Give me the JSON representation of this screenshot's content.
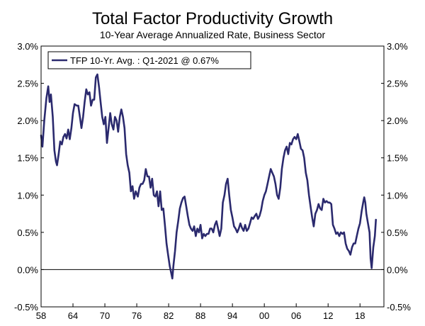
{
  "chart_data": {
    "type": "line",
    "title": "Total Factor Productivity Growth",
    "subtitle": "10-Year Average Annualized Rate, Business Sector",
    "xlabel": "",
    "ylabel": "",
    "xlim": [
      1958,
      2022.5
    ],
    "ylim": [
      -0.5,
      3.0
    ],
    "x_ticks": [
      1958,
      1964,
      1970,
      1976,
      1982,
      1988,
      1994,
      2000,
      2006,
      2012,
      2018
    ],
    "x_tick_labels": [
      "58",
      "64",
      "70",
      "76",
      "82",
      "88",
      "94",
      "00",
      "06",
      "12",
      "18"
    ],
    "y_ticks": [
      -0.5,
      0.0,
      0.5,
      1.0,
      1.5,
      2.0,
      2.5,
      3.0
    ],
    "y_tick_labels_left": [
      "-0.5%",
      "0.0%",
      "0.5%",
      "1.0%",
      "1.5%",
      "2.0%",
      "2.5%",
      "3.0%"
    ],
    "y_tick_labels_right": [
      "-0.5%",
      "0.0%",
      "0.5%",
      "1.0%",
      "1.5%",
      "2.0%",
      "2.5%",
      "3.0%"
    ],
    "zero_line": true,
    "legend": {
      "position": "top-left",
      "label": "TFP 10-Yr. Avg. : Q1-2021 @ 0.67%"
    },
    "series": [
      {
        "name": "TFP 10-Yr. Avg. : Q1-2021 @ 0.67%",
        "color": "#2b2a6e",
        "points": [
          [
            1958.0,
            1.8
          ],
          [
            1958.25,
            1.65
          ],
          [
            1958.6,
            2.0
          ],
          [
            1959.0,
            2.3
          ],
          [
            1959.35,
            2.46
          ],
          [
            1959.6,
            2.25
          ],
          [
            1959.85,
            2.35
          ],
          [
            1960.2,
            2.05
          ],
          [
            1960.5,
            1.6
          ],
          [
            1960.8,
            1.45
          ],
          [
            1961.0,
            1.4
          ],
          [
            1961.3,
            1.55
          ],
          [
            1961.6,
            1.72
          ],
          [
            1961.9,
            1.68
          ],
          [
            1962.2,
            1.78
          ],
          [
            1962.5,
            1.82
          ],
          [
            1962.8,
            1.76
          ],
          [
            1963.1,
            1.88
          ],
          [
            1963.4,
            1.75
          ],
          [
            1963.7,
            1.9
          ],
          [
            1964.0,
            2.1
          ],
          [
            1964.3,
            2.22
          ],
          [
            1964.7,
            2.2
          ],
          [
            1965.0,
            2.2
          ],
          [
            1965.3,
            2.05
          ],
          [
            1965.6,
            1.9
          ],
          [
            1965.9,
            2.05
          ],
          [
            1966.2,
            2.25
          ],
          [
            1966.5,
            2.42
          ],
          [
            1966.8,
            2.35
          ],
          [
            1967.1,
            2.38
          ],
          [
            1967.4,
            2.2
          ],
          [
            1967.7,
            2.28
          ],
          [
            1968.0,
            2.28
          ],
          [
            1968.3,
            2.58
          ],
          [
            1968.6,
            2.62
          ],
          [
            1968.9,
            2.45
          ],
          [
            1969.2,
            2.25
          ],
          [
            1969.5,
            2.05
          ],
          [
            1969.8,
            1.95
          ],
          [
            1970.1,
            2.05
          ],
          [
            1970.4,
            1.7
          ],
          [
            1970.7,
            1.9
          ],
          [
            1971.0,
            2.1
          ],
          [
            1971.3,
            1.95
          ],
          [
            1971.6,
            1.88
          ],
          [
            1971.9,
            2.05
          ],
          [
            1972.2,
            2.0
          ],
          [
            1972.5,
            1.85
          ],
          [
            1972.8,
            2.05
          ],
          [
            1973.1,
            2.15
          ],
          [
            1973.4,
            2.05
          ],
          [
            1973.7,
            1.9
          ],
          [
            1974.0,
            1.55
          ],
          [
            1974.3,
            1.4
          ],
          [
            1974.6,
            1.3
          ],
          [
            1974.9,
            1.05
          ],
          [
            1975.2,
            1.12
          ],
          [
            1975.5,
            0.95
          ],
          [
            1975.8,
            1.05
          ],
          [
            1976.2,
            0.98
          ],
          [
            1976.5,
            1.1
          ],
          [
            1976.8,
            1.15
          ],
          [
            1977.1,
            1.15
          ],
          [
            1977.4,
            1.2
          ],
          [
            1977.7,
            1.35
          ],
          [
            1978.0,
            1.25
          ],
          [
            1978.3,
            1.25
          ],
          [
            1978.6,
            1.1
          ],
          [
            1978.9,
            1.22
          ],
          [
            1979.2,
            1.0
          ],
          [
            1979.5,
            0.98
          ],
          [
            1979.8,
            1.05
          ],
          [
            1980.1,
            0.85
          ],
          [
            1980.4,
            1.05
          ],
          [
            1980.7,
            0.8
          ],
          [
            1981.0,
            0.82
          ],
          [
            1981.3,
            0.6
          ],
          [
            1981.6,
            0.35
          ],
          [
            1981.9,
            0.2
          ],
          [
            1982.2,
            0.05
          ],
          [
            1982.5,
            -0.05
          ],
          [
            1982.7,
            -0.12
          ],
          [
            1982.9,
            0.05
          ],
          [
            1983.2,
            0.25
          ],
          [
            1983.5,
            0.5
          ],
          [
            1983.8,
            0.65
          ],
          [
            1984.1,
            0.82
          ],
          [
            1984.4,
            0.9
          ],
          [
            1984.7,
            0.96
          ],
          [
            1985.0,
            0.98
          ],
          [
            1985.3,
            0.85
          ],
          [
            1985.6,
            0.72
          ],
          [
            1985.9,
            0.6
          ],
          [
            1986.2,
            0.55
          ],
          [
            1986.5,
            0.52
          ],
          [
            1986.8,
            0.58
          ],
          [
            1987.1,
            0.45
          ],
          [
            1987.4,
            0.55
          ],
          [
            1987.7,
            0.5
          ],
          [
            1988.0,
            0.6
          ],
          [
            1988.3,
            0.42
          ],
          [
            1988.6,
            0.48
          ],
          [
            1988.9,
            0.45
          ],
          [
            1989.2,
            0.48
          ],
          [
            1989.5,
            0.48
          ],
          [
            1989.8,
            0.55
          ],
          [
            1990.1,
            0.55
          ],
          [
            1990.4,
            0.5
          ],
          [
            1990.7,
            0.6
          ],
          [
            1991.0,
            0.65
          ],
          [
            1991.3,
            0.55
          ],
          [
            1991.6,
            0.45
          ],
          [
            1991.9,
            0.55
          ],
          [
            1992.2,
            0.9
          ],
          [
            1992.5,
            1.0
          ],
          [
            1992.8,
            1.15
          ],
          [
            1993.1,
            1.22
          ],
          [
            1993.4,
            1.0
          ],
          [
            1993.7,
            0.8
          ],
          [
            1994.0,
            0.7
          ],
          [
            1994.3,
            0.58
          ],
          [
            1994.6,
            0.55
          ],
          [
            1994.9,
            0.5
          ],
          [
            1995.2,
            0.55
          ],
          [
            1995.5,
            0.62
          ],
          [
            1995.8,
            0.56
          ],
          [
            1996.1,
            0.52
          ],
          [
            1996.4,
            0.6
          ],
          [
            1996.7,
            0.52
          ],
          [
            1997.0,
            0.55
          ],
          [
            1997.3,
            0.62
          ],
          [
            1997.6,
            0.7
          ],
          [
            1997.9,
            0.68
          ],
          [
            1998.2,
            0.72
          ],
          [
            1998.5,
            0.75
          ],
          [
            1998.8,
            0.68
          ],
          [
            1999.1,
            0.72
          ],
          [
            1999.4,
            0.8
          ],
          [
            1999.7,
            0.92
          ],
          [
            2000.0,
            1.0
          ],
          [
            2000.3,
            1.05
          ],
          [
            2000.6,
            1.15
          ],
          [
            2000.9,
            1.25
          ],
          [
            2001.2,
            1.35
          ],
          [
            2001.5,
            1.3
          ],
          [
            2001.8,
            1.25
          ],
          [
            2002.1,
            1.15
          ],
          [
            2002.4,
            1.0
          ],
          [
            2002.7,
            0.95
          ],
          [
            2003.0,
            1.1
          ],
          [
            2003.3,
            1.35
          ],
          [
            2003.6,
            1.5
          ],
          [
            2003.9,
            1.6
          ],
          [
            2004.2,
            1.65
          ],
          [
            2004.5,
            1.55
          ],
          [
            2004.8,
            1.7
          ],
          [
            2005.1,
            1.68
          ],
          [
            2005.4,
            1.75
          ],
          [
            2005.7,
            1.78
          ],
          [
            2006.0,
            1.75
          ],
          [
            2006.3,
            1.82
          ],
          [
            2006.6,
            1.72
          ],
          [
            2006.9,
            1.62
          ],
          [
            2007.2,
            1.6
          ],
          [
            2007.5,
            1.5
          ],
          [
            2007.8,
            1.3
          ],
          [
            2008.1,
            1.2
          ],
          [
            2008.4,
            1.0
          ],
          [
            2008.7,
            0.85
          ],
          [
            2009.0,
            0.7
          ],
          [
            2009.3,
            0.58
          ],
          [
            2009.6,
            0.75
          ],
          [
            2009.9,
            0.8
          ],
          [
            2010.2,
            0.88
          ],
          [
            2010.5,
            0.82
          ],
          [
            2010.8,
            0.8
          ],
          [
            2011.1,
            0.95
          ],
          [
            2011.4,
            0.9
          ],
          [
            2011.7,
            0.92
          ],
          [
            2012.0,
            0.9
          ],
          [
            2012.3,
            0.9
          ],
          [
            2012.6,
            0.88
          ],
          [
            2012.9,
            0.6
          ],
          [
            2013.2,
            0.55
          ],
          [
            2013.5,
            0.48
          ],
          [
            2013.8,
            0.5
          ],
          [
            2014.1,
            0.45
          ],
          [
            2014.4,
            0.5
          ],
          [
            2014.7,
            0.48
          ],
          [
            2015.0,
            0.5
          ],
          [
            2015.3,
            0.35
          ],
          [
            2015.6,
            0.28
          ],
          [
            2015.9,
            0.25
          ],
          [
            2016.2,
            0.2
          ],
          [
            2016.5,
            0.3
          ],
          [
            2016.8,
            0.35
          ],
          [
            2017.1,
            0.35
          ],
          [
            2017.4,
            0.45
          ],
          [
            2017.7,
            0.55
          ],
          [
            2018.0,
            0.62
          ],
          [
            2018.3,
            0.78
          ],
          [
            2018.6,
            0.9
          ],
          [
            2018.8,
            0.97
          ],
          [
            2019.0,
            0.9
          ],
          [
            2019.2,
            0.75
          ],
          [
            2019.5,
            0.62
          ],
          [
            2019.8,
            0.5
          ],
          [
            2020.0,
            0.15
          ],
          [
            2020.2,
            0.02
          ],
          [
            2020.5,
            0.3
          ],
          [
            2020.8,
            0.45
          ],
          [
            2021.0,
            0.67
          ]
        ]
      }
    ]
  }
}
